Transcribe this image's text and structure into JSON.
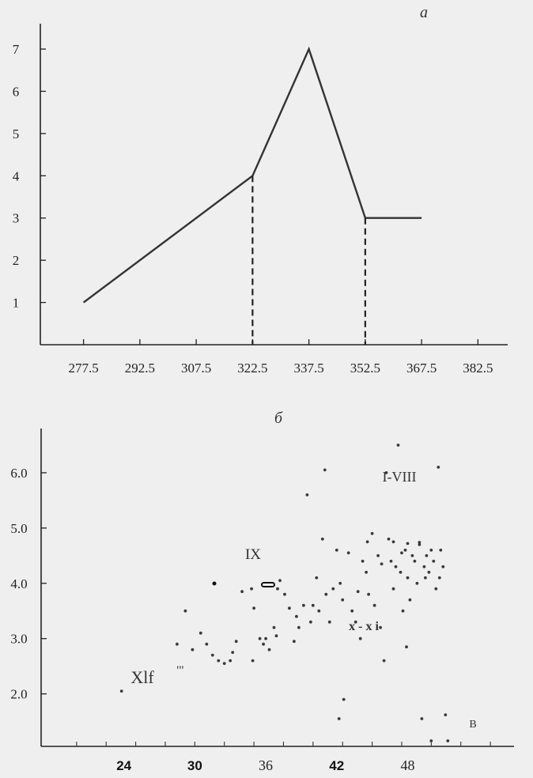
{
  "chart_data": [
    {
      "type": "line",
      "title": "a",
      "x": [
        277.5,
        322.5,
        337.5,
        352.5,
        367.5
      ],
      "series": [
        {
          "values": [
            1,
            4,
            7,
            3,
            3
          ]
        }
      ],
      "x_ticks": [
        "277.5",
        "292.5",
        "307.5",
        "322.5",
        "337.5",
        "352.5",
        "367.5",
        "382.5"
      ],
      "y_ticks": [
        "1",
        "2",
        "3",
        "4",
        "5",
        "6",
        "7"
      ],
      "xlim": [
        266,
        390
      ],
      "ylim": [
        0,
        7.6
      ],
      "dropdowns": [
        {
          "x": 322.5,
          "from": 4,
          "to": 0
        },
        {
          "x": 352.5,
          "from": 3,
          "to": 0
        }
      ],
      "grid": false
    },
    {
      "type": "scatter",
      "title": "б",
      "x_ticks": [
        "24",
        "30",
        "36",
        "42",
        "48"
      ],
      "y_ticks": [
        "2.0",
        "3.0",
        "4.0",
        "5.0",
        "6.0"
      ],
      "xlim": [
        17,
        57
      ],
      "ylim": [
        1.05,
        6.8
      ],
      "annotations": [
        "I-VIII",
        "IX",
        "x - x i",
        "Xlf",
        "'\"",
        "B"
      ],
      "points": [
        [
          23.8,
          2.05
        ],
        [
          29.2,
          3.5
        ],
        [
          28.5,
          2.9
        ],
        [
          29.8,
          2.8
        ],
        [
          30.5,
          3.1
        ],
        [
          31.0,
          2.9
        ],
        [
          31.5,
          2.7
        ],
        [
          32.0,
          2.6
        ],
        [
          32.5,
          2.55
        ],
        [
          33.0,
          2.6
        ],
        [
          33.5,
          2.95
        ],
        [
          34.0,
          3.85
        ],
        [
          34.8,
          3.9
        ],
        [
          35.0,
          3.55
        ],
        [
          35.5,
          3.0
        ],
        [
          35.8,
          2.9
        ],
        [
          36.0,
          3.0
        ],
        [
          36.3,
          2.8
        ],
        [
          36.7,
          3.2
        ],
        [
          37.0,
          3.9
        ],
        [
          37.2,
          4.05
        ],
        [
          37.6,
          3.8
        ],
        [
          38.0,
          3.55
        ],
        [
          38.4,
          2.95
        ],
        [
          38.8,
          3.2
        ],
        [
          39.2,
          3.6
        ],
        [
          39.5,
          5.6
        ],
        [
          39.8,
          3.3
        ],
        [
          40.0,
          3.6
        ],
        [
          40.3,
          4.1
        ],
        [
          40.5,
          3.5
        ],
        [
          40.8,
          4.8
        ],
        [
          41.0,
          6.05
        ],
        [
          41.4,
          3.3
        ],
        [
          41.7,
          3.9
        ],
        [
          42.0,
          4.6
        ],
        [
          42.3,
          4.0
        ],
        [
          42.5,
          3.7
        ],
        [
          42.6,
          1.9
        ],
        [
          42.2,
          1.55
        ],
        [
          43.0,
          4.55
        ],
        [
          43.3,
          3.5
        ],
        [
          43.6,
          3.3
        ],
        [
          44.0,
          3.0
        ],
        [
          44.2,
          4.4
        ],
        [
          44.5,
          4.2
        ],
        [
          44.7,
          3.8
        ],
        [
          45.0,
          4.9
        ],
        [
          45.2,
          3.6
        ],
        [
          45.5,
          4.5
        ],
        [
          45.7,
          3.2
        ],
        [
          46.0,
          2.6
        ],
        [
          46.2,
          6.0
        ],
        [
          46.4,
          4.8
        ],
        [
          46.6,
          4.4
        ],
        [
          46.8,
          3.9
        ],
        [
          47.0,
          4.3
        ],
        [
          47.2,
          6.5
        ],
        [
          47.4,
          4.2
        ],
        [
          47.6,
          3.5
        ],
        [
          47.8,
          4.6
        ],
        [
          48.0,
          4.1
        ],
        [
          48.2,
          3.7
        ],
        [
          48.4,
          4.5
        ],
        [
          48.6,
          4.4
        ],
        [
          48.8,
          4.0
        ],
        [
          49.0,
          4.7
        ],
        [
          49.2,
          1.55
        ],
        [
          49.4,
          4.3
        ],
        [
          49.6,
          4.5
        ],
        [
          49.8,
          4.2
        ],
        [
          50.0,
          4.6
        ],
        [
          50.2,
          4.4
        ],
        [
          50.4,
          3.9
        ],
        [
          50.6,
          6.1
        ],
        [
          50.8,
          4.6
        ],
        [
          51.0,
          4.3
        ],
        [
          51.2,
          1.62
        ],
        [
          51.4,
          1.15
        ],
        [
          50.0,
          1.15
        ],
        [
          44.6,
          4.75
        ],
        [
          46.8,
          4.75
        ],
        [
          48.0,
          4.72
        ],
        [
          49.0,
          4.74
        ],
        [
          45.8,
          4.35
        ],
        [
          47.5,
          4.55
        ],
        [
          49.5,
          4.1
        ],
        [
          50.7,
          4.1
        ],
        [
          43.8,
          3.85
        ],
        [
          41.1,
          3.8
        ],
        [
          38.6,
          3.4
        ],
        [
          36.9,
          3.05
        ],
        [
          34.9,
          2.6
        ],
        [
          33.2,
          2.75
        ],
        [
          47.9,
          2.85
        ]
      ],
      "grid": false
    }
  ]
}
